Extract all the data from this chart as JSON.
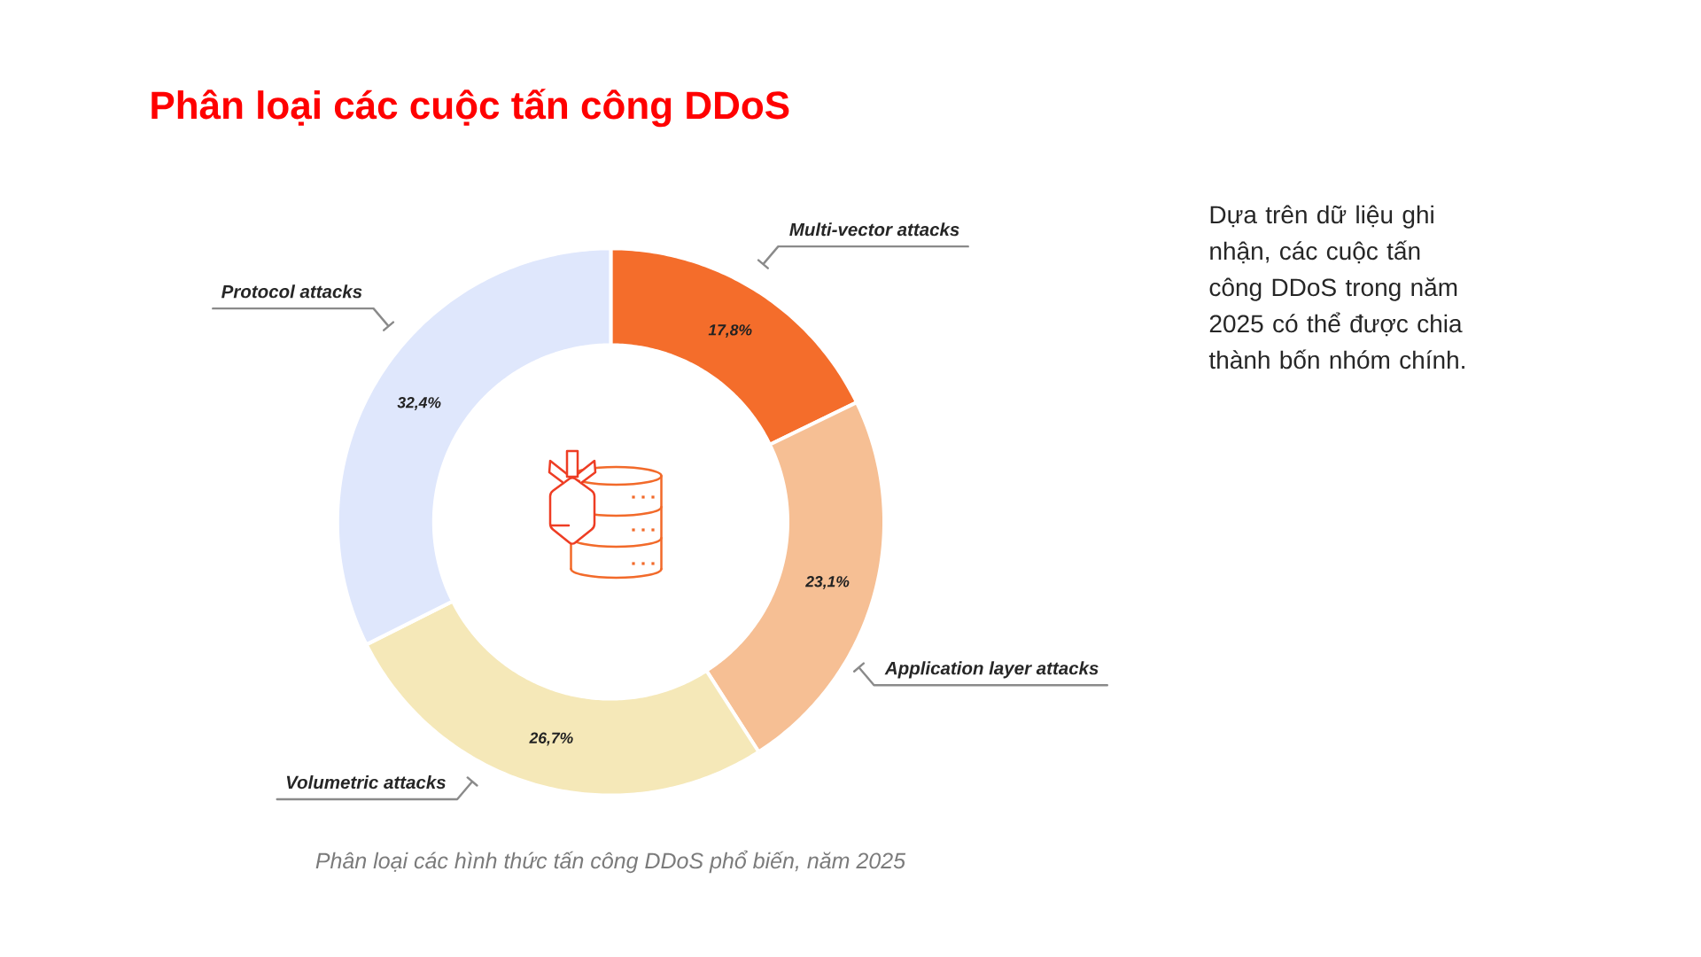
{
  "chart_data": {
    "type": "donut",
    "title": "Phân loại các cuộc tấn công DDoS",
    "categories": [
      "Multi-vector attacks",
      "Application layer attacks",
      "Volumetric attacks",
      "Protocol attacks"
    ],
    "values": [
      17.8,
      23.1,
      26.7,
      32.4
    ],
    "colors": [
      "#f46d2b",
      "#f6bf94",
      "#f5e8b8",
      "#dfe7fc"
    ],
    "value_labels": [
      "17,8%",
      "23,1%",
      "26,7%",
      "32,4%"
    ],
    "annotations": [
      "Phân loại các hình thức tấn công DDoS phổ biến, năm 2025",
      "Dựa trên dữ liệu ghi nhận, các cuộc tấn công DDoS trong năm 2025 có thể được chia thành bốn nhóm chính."
    ]
  }
}
